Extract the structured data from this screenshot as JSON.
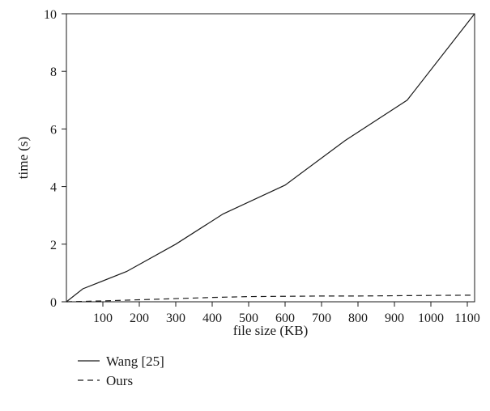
{
  "chart_data": {
    "type": "line",
    "xlabel": "file size (KB)",
    "ylabel": "time (s)",
    "xlim": [
      0,
      1120
    ],
    "ylim": [
      0,
      10
    ],
    "xticks": [
      100,
      200,
      300,
      400,
      500,
      600,
      700,
      800,
      900,
      1000,
      1100
    ],
    "yticks": [
      0,
      2,
      4,
      6,
      8,
      10
    ],
    "grid": false,
    "legend_position": "bottom-left",
    "series": [
      {
        "name": "Wang [25]",
        "style": "solid",
        "color": "#1a1a1a",
        "x": [
          0,
          45,
          165,
          300,
          430,
          600,
          765,
          935,
          1120
        ],
        "y": [
          0,
          0.45,
          1.05,
          2.0,
          3.05,
          4.05,
          5.6,
          7.0,
          10.0
        ]
      },
      {
        "name": "Ours",
        "style": "dashed",
        "color": "#1a1a1a",
        "x": [
          0,
          100,
          200,
          300,
          400,
          500,
          600,
          700,
          800,
          900,
          1000,
          1120
        ],
        "y": [
          0,
          0.03,
          0.07,
          0.11,
          0.15,
          0.18,
          0.19,
          0.2,
          0.2,
          0.21,
          0.22,
          0.23
        ]
      }
    ]
  }
}
